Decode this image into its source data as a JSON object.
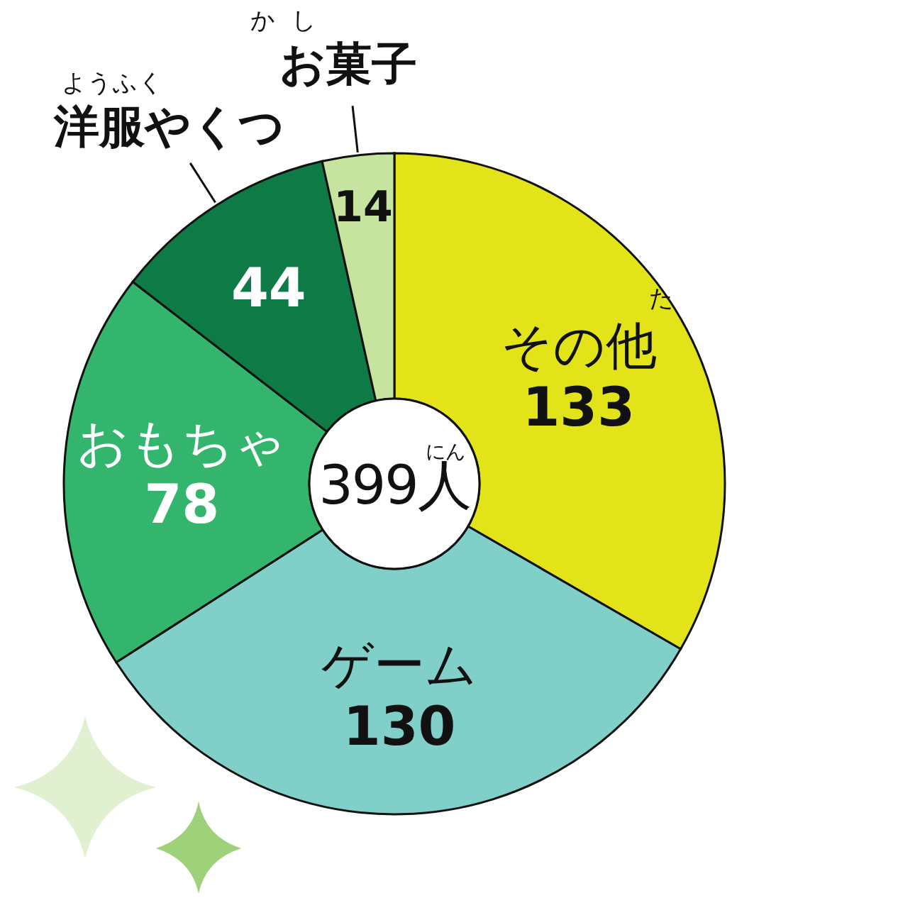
{
  "chart_data": {
    "type": "donut",
    "categories": [
      "その他",
      "ゲーム",
      "おもちゃ",
      "洋服やくつ",
      "お菓子"
    ],
    "values": [
      133,
      130,
      78,
      44,
      14
    ],
    "colors": [
      "#e3e31a",
      "#80cfc8",
      "#33b56e",
      "#0e7a45",
      "#c6e3a0"
    ],
    "data_labels": true,
    "annotations": [
      "399人",
      "にん",
      "ようふく",
      "かし",
      "た"
    ]
  }
}
